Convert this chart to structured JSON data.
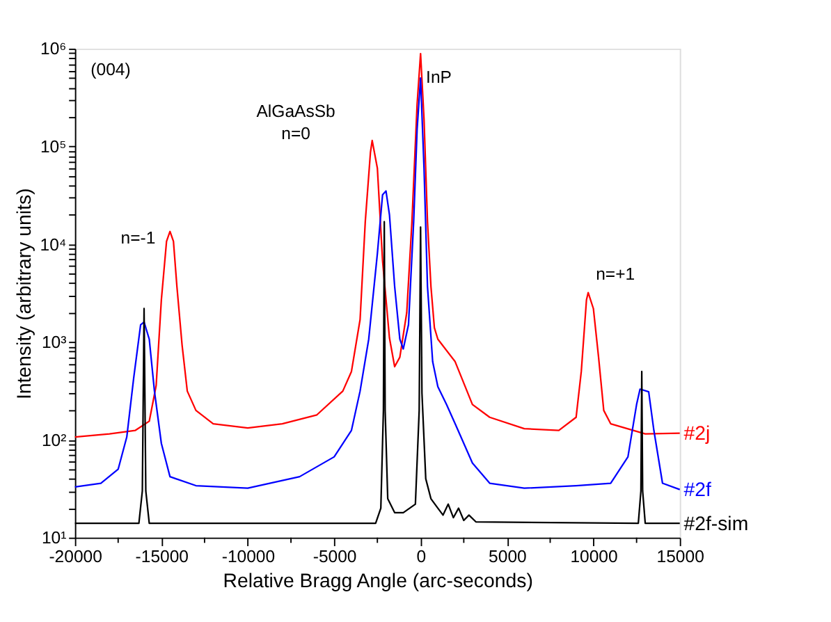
{
  "chart_data": {
    "type": "line",
    "xlabel": "Relative Bragg Angle (arc-seconds)",
    "ylabel": "Intensity (arbitrary units)",
    "log": "y",
    "grid": false,
    "legend": false,
    "marker": "none",
    "line_style": "solid",
    "xlim": [
      -20000,
      15000
    ],
    "xticks": [
      -20000,
      {
        "value": -17500,
        "label": null
      },
      -15000,
      {
        "value": -12500,
        "label": null
      },
      -10000,
      {
        "value": -7500,
        "label": null
      },
      -5000,
      {
        "value": -2500,
        "label": null
      },
      0,
      {
        "value": 2500,
        "label": null
      },
      5000,
      {
        "value": 7500,
        "label": null
      },
      10000,
      {
        "value": 12500,
        "label": null
      },
      15000
    ],
    "ylim": [
      10,
      1000000
    ],
    "yticks": [
      {
        "value": 10,
        "label": "10¹"
      },
      {
        "value": 20,
        "label": null
      },
      {
        "value": 30,
        "label": null
      },
      {
        "value": 40,
        "label": null
      },
      {
        "value": 50,
        "label": null
      },
      {
        "value": 60,
        "label": null
      },
      {
        "value": 70,
        "label": null
      },
      {
        "value": 80,
        "label": null
      },
      {
        "value": 90,
        "label": null
      },
      {
        "value": 100,
        "label": "10²"
      },
      {
        "value": 200,
        "label": null
      },
      {
        "value": 300,
        "label": null
      },
      {
        "value": 400,
        "label": null
      },
      {
        "value": 500,
        "label": null
      },
      {
        "value": 600,
        "label": null
      },
      {
        "value": 700,
        "label": null
      },
      {
        "value": 800,
        "label": null
      },
      {
        "value": 900,
        "label": null
      },
      {
        "value": 1000,
        "label": "10³"
      },
      {
        "value": 2000,
        "label": null
      },
      {
        "value": 3000,
        "label": null
      },
      {
        "value": 4000,
        "label": null
      },
      {
        "value": 5000,
        "label": null
      },
      {
        "value": 6000,
        "label": null
      },
      {
        "value": 7000,
        "label": null
      },
      {
        "value": 8000,
        "label": null
      },
      {
        "value": 9000,
        "label": null
      },
      {
        "value": 10000,
        "label": "10⁴"
      },
      {
        "value": 20000,
        "label": null
      },
      {
        "value": 30000,
        "label": null
      },
      {
        "value": 40000,
        "label": null
      },
      {
        "value": 50000,
        "label": null
      },
      {
        "value": 60000,
        "label": null
      },
      {
        "value": 70000,
        "label": null
      },
      {
        "value": 80000,
        "label": null
      },
      {
        "value": 90000,
        "label": null
      },
      {
        "value": 100000,
        "label": "10⁵"
      },
      {
        "value": 200000,
        "label": null
      },
      {
        "value": 300000,
        "label": null
      },
      {
        "value": 400000,
        "label": null
      },
      {
        "value": 500000,
        "label": null
      },
      {
        "value": 600000,
        "label": null
      },
      {
        "value": 700000,
        "label": null
      },
      {
        "value": 800000,
        "label": null
      },
      {
        "value": 900000,
        "label": null
      },
      {
        "value": 1000000,
        "label": "10⁶"
      }
    ],
    "series": [
      {
        "name": "#2j",
        "color": "#ff0000",
        "x": [
          -20000,
          -18000,
          -16500,
          -15700,
          -15300,
          -15000,
          -14700,
          -14500,
          -14300,
          -14100,
          -13800,
          -13500,
          -13000,
          -12000,
          -10000,
          -8000,
          -6000,
          -4500,
          -4000,
          -3500,
          -3200,
          -2900,
          -2800,
          -2500,
          -2200,
          -1800,
          -1500,
          -1200,
          -800,
          -500,
          -200,
          0,
          200,
          400,
          600,
          800,
          1000,
          2000,
          3000,
          4000,
          6000,
          8000,
          9000,
          9300,
          9600,
          9700,
          10000,
          10300,
          10600,
          11000,
          13000,
          15000
        ],
        "values": [
          107,
          115,
          125,
          155,
          360,
          2700,
          10700,
          13500,
          10700,
          3700,
          930,
          315,
          200,
          146,
          132,
          146,
          180,
          315,
          500,
          1700,
          17000,
          87000,
          115000,
          60000,
          6800,
          1100,
          560,
          700,
          2000,
          17000,
          270000,
          890000,
          190000,
          17000,
          3700,
          1400,
          1070,
          630,
          230,
          170,
          130,
          125,
          170,
          500,
          2700,
          3200,
          2200,
          700,
          200,
          146,
          115,
          117
        ]
      },
      {
        "name": "#2f",
        "color": "#0000ff",
        "x": [
          -20000,
          -18500,
          -17500,
          -17000,
          -16600,
          -16200,
          -16000,
          -15700,
          -15400,
          -15000,
          -14500,
          -13000,
          -10000,
          -7000,
          -5000,
          -4000,
          -3500,
          -3000,
          -2500,
          -2200,
          -2000,
          -1800,
          -1500,
          -1200,
          -1000,
          -700,
          -400,
          -200,
          0,
          200,
          400,
          700,
          1000,
          1500,
          2000,
          3000,
          4000,
          6000,
          9000,
          11000,
          12000,
          12500,
          12700,
          13200,
          13500,
          14000,
          15000
        ],
        "values": [
          33,
          36,
          50,
          107,
          430,
          1500,
          1600,
          1070,
          315,
          92,
          42,
          34,
          32,
          42,
          67,
          125,
          315,
          1070,
          8000,
          32000,
          35000,
          20000,
          3700,
          1070,
          850,
          1500,
          17000,
          150000,
          500000,
          60000,
          3700,
          630,
          350,
          230,
          146,
          58,
          36,
          32,
          34,
          36,
          67,
          230,
          330,
          310,
          125,
          36,
          31
        ]
      },
      {
        "name": "#2f-sim",
        "color": "#000000",
        "x": [
          -20000,
          -16300,
          -16100,
          -16000,
          -15900,
          -15700,
          -2600,
          -2300,
          -2150,
          -2100,
          -2050,
          -1900,
          -1500,
          -1000,
          -300,
          -80,
          0,
          80,
          300,
          600,
          1000,
          1300,
          1600,
          1900,
          2200,
          2500,
          2800,
          3200,
          12600,
          12750,
          12800,
          12850,
          13000,
          15000
        ],
        "values": [
          14,
          14,
          30,
          2200,
          30,
          14,
          14,
          20,
          200,
          17000,
          200,
          25,
          18,
          18,
          22,
          200,
          15000,
          300,
          40,
          25,
          20,
          17,
          22,
          16,
          20,
          15,
          17,
          14.5,
          14,
          30,
          500,
          30,
          14,
          14
        ]
      }
    ],
    "annotations": [
      "(004)",
      "n=-1",
      "AlGaAsSb\nn=0",
      "InP",
      "n=+1"
    ]
  }
}
